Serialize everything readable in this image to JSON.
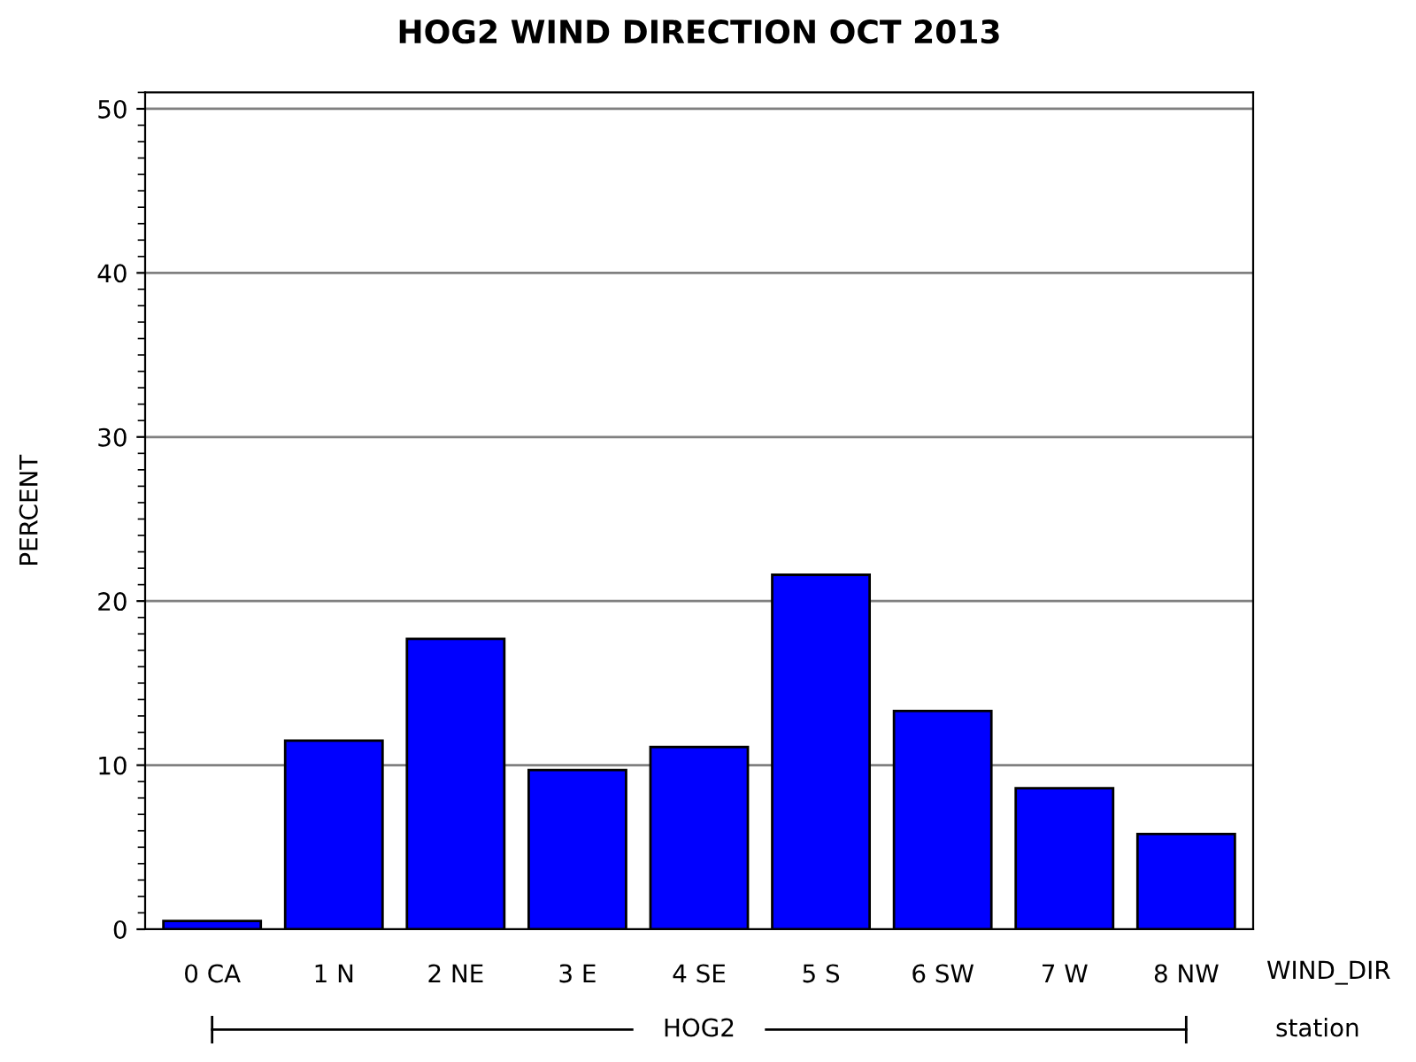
{
  "chart_data": {
    "type": "bar",
    "title": "HOG2 WIND DIRECTION OCT 2013",
    "xlabel": "WIND_DIR",
    "ylabel": "PERCENT",
    "categories": [
      "0 CA",
      "1 N",
      "2 NE",
      "3 E",
      "4 SE",
      "5 S",
      "6 SW",
      "7 W",
      "8 NW"
    ],
    "values": [
      0.5,
      11.5,
      17.7,
      9.7,
      11.1,
      21.6,
      13.3,
      8.6,
      5.8
    ],
    "color": "#0000ff",
    "ylim": [
      0,
      51
    ],
    "yticks": [
      0,
      10,
      20,
      30,
      40,
      50
    ],
    "grid": "y",
    "annotations": [
      "HOG2",
      "station"
    ]
  }
}
